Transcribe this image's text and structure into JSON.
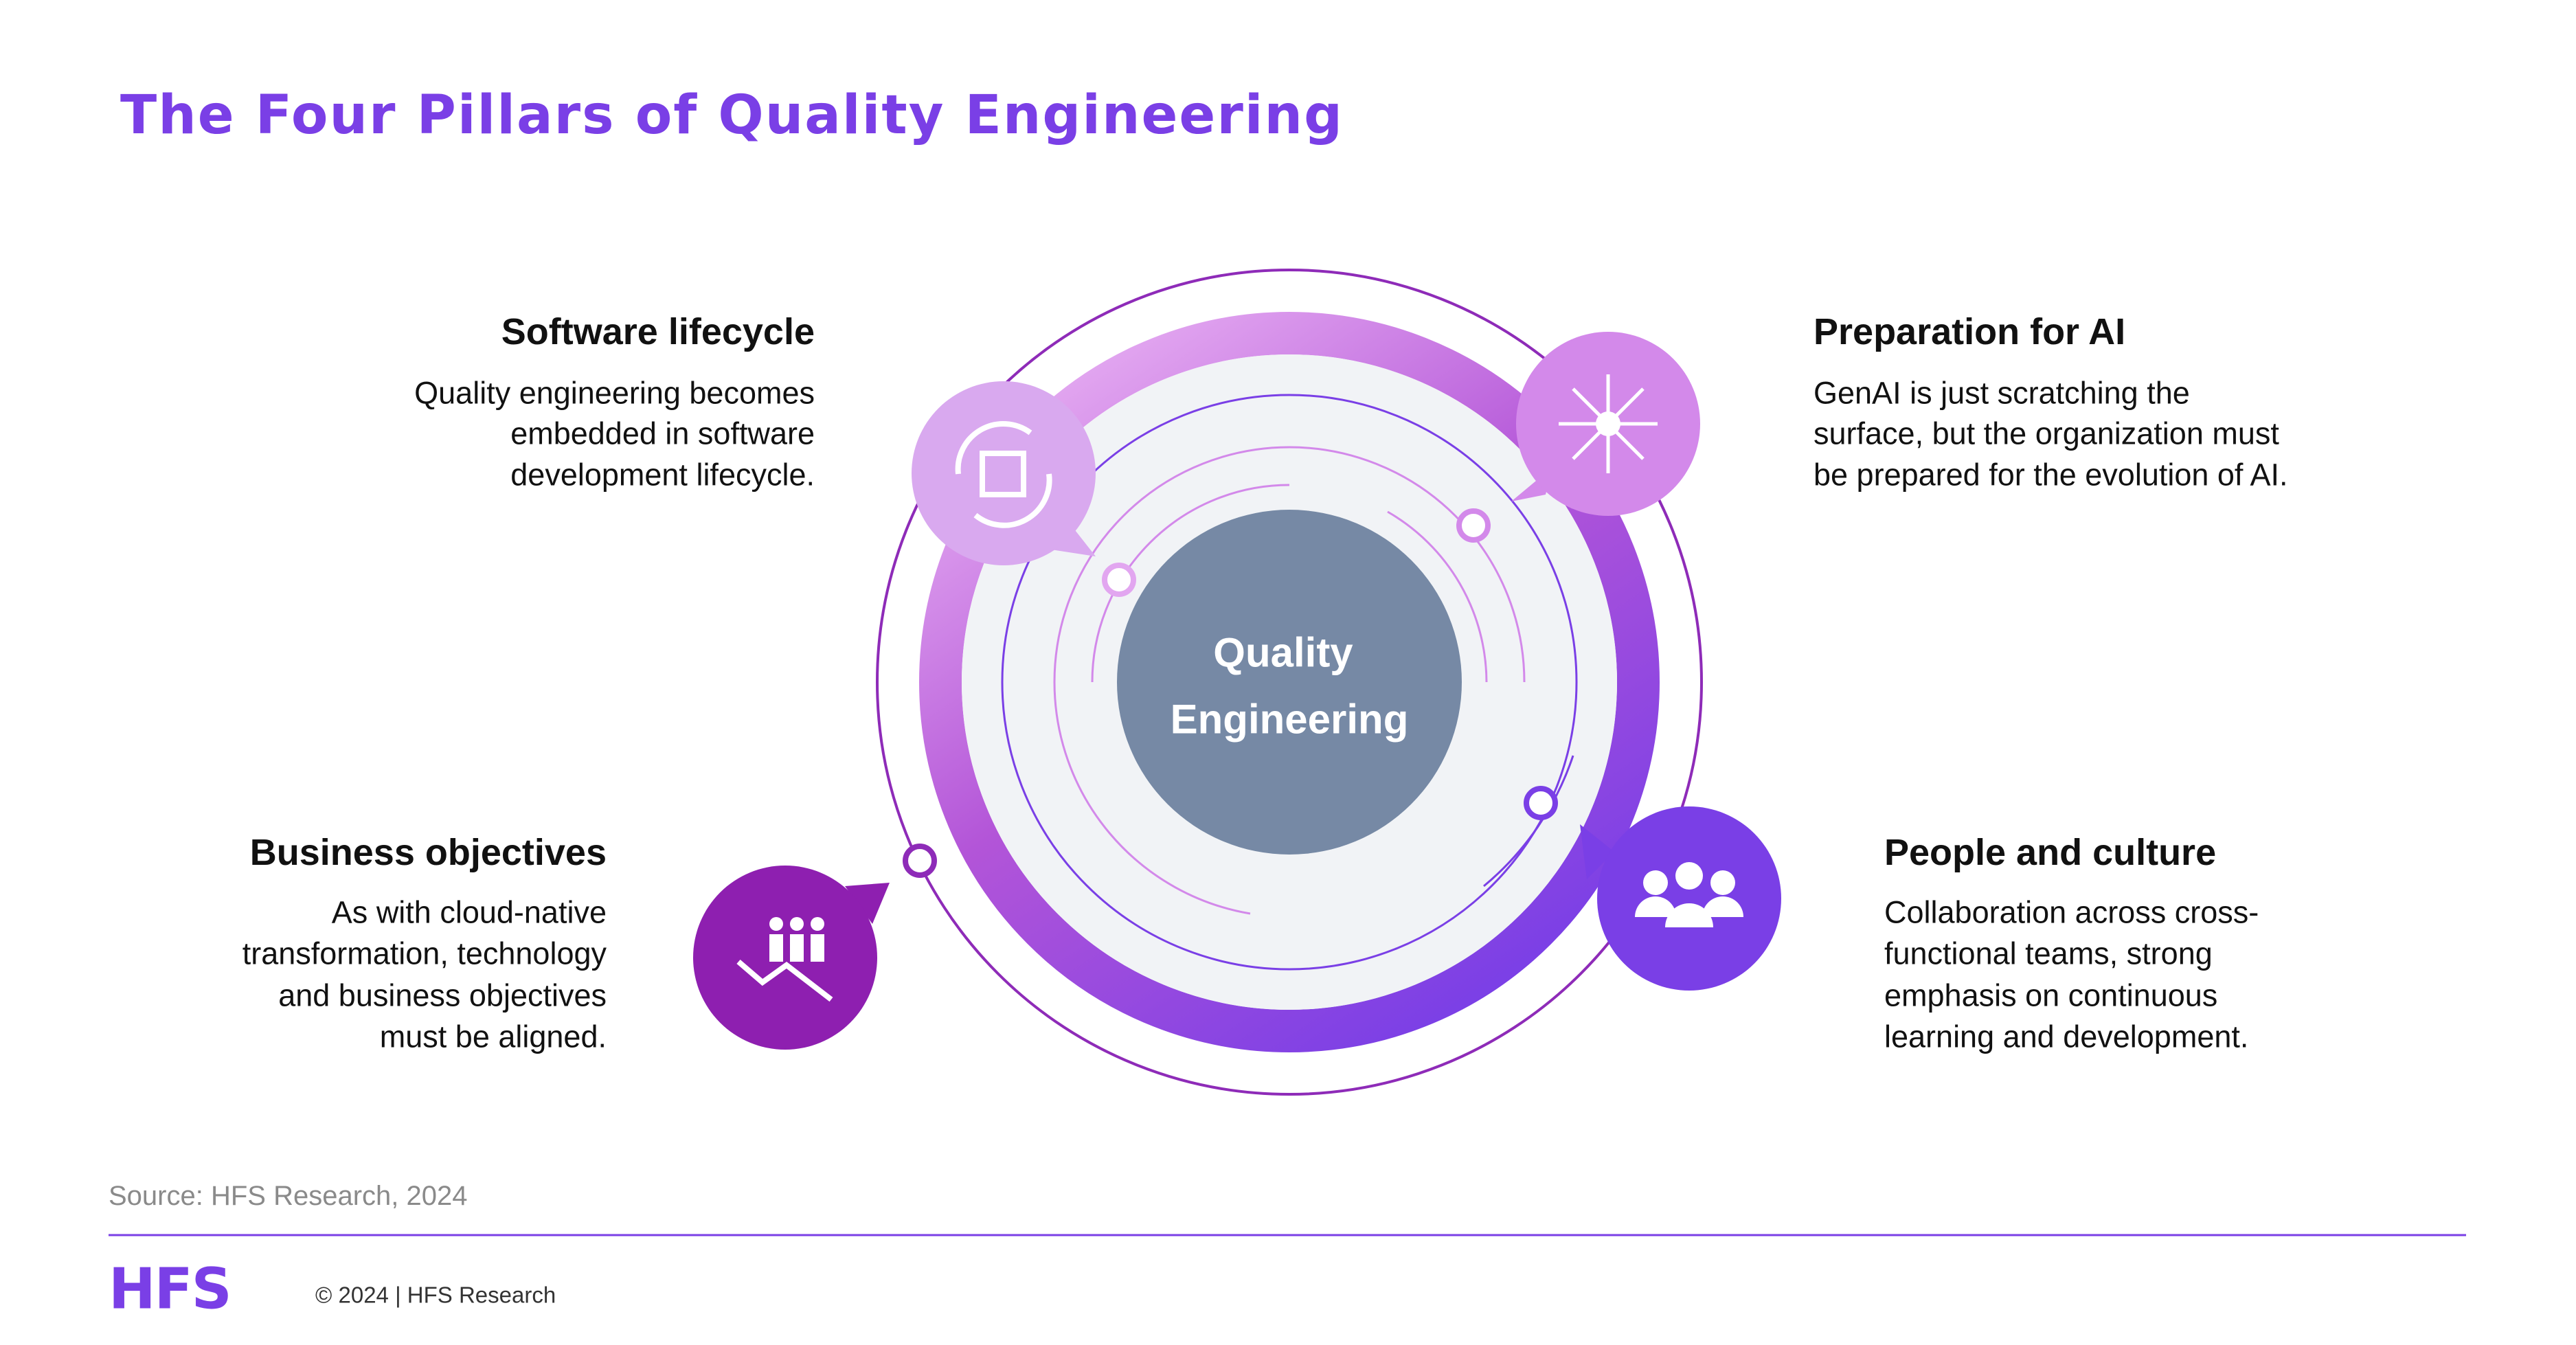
{
  "header": {
    "title": "The Four Pillars of Quality Engineering"
  },
  "center": {
    "lines": [
      "Quality",
      "Engineering"
    ]
  },
  "pillars": [
    {
      "heading": "Software lifecycle",
      "body": [
        "Quality engineering becomes",
        "embedded in software",
        "development lifecycle."
      ]
    },
    {
      "heading": "Preparation for AI",
      "body": [
        "GenAI is just scratching the",
        "surface, but the organization must",
        "be prepared for the evolution of AI."
      ]
    },
    {
      "heading": "Business objectives",
      "body": [
        "As with cloud-native",
        "transformation, technology",
        "and business objectives",
        "must be aligned."
      ]
    },
    {
      "heading": "People and culture",
      "body": [
        "Collaboration across cross-",
        "functional teams, strong",
        "emphasis on continuous",
        "learning and development."
      ]
    }
  ],
  "source": "Source: HFS Research, 2024",
  "footer": {
    "logo": "HFS",
    "copyright": "© 2024 | HFS Research"
  }
}
